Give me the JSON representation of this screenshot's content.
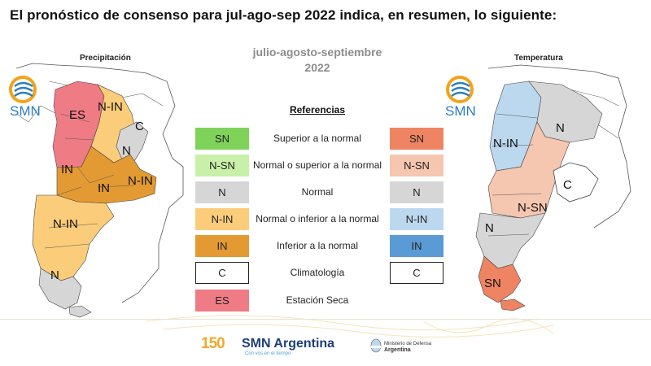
{
  "title": "El pronóstico de consenso para  jul-ago-sep 2022 indica, en resumen, lo siguiente:",
  "period": {
    "line1": "julio-agosto-septiembre",
    "line2": "2022"
  },
  "left_map": {
    "title": "Precipitación",
    "logo_text": "SMN",
    "labels": [
      "ES",
      "N-IN",
      "C",
      "N",
      "IN",
      "IN",
      "N-IN",
      "N-IN",
      "N"
    ]
  },
  "right_map": {
    "title": "Temperatura",
    "logo_text": "SMN",
    "labels": [
      "N",
      "N-IN",
      "C",
      "N-SN",
      "N",
      "SN"
    ]
  },
  "references": {
    "title": "Referencias",
    "items": [
      {
        "label": "Superior a la normal",
        "left_code": "SN",
        "left_color": "#7fd35a",
        "right_code": "SN",
        "right_color": "#ef8462"
      },
      {
        "label": "Normal o superior a la normal",
        "left_code": "N-SN",
        "left_color": "#c9f0a9",
        "right_code": "N-SN",
        "right_color": "#f5c6b0"
      },
      {
        "label": "Normal",
        "left_code": "N",
        "left_color": "#d6d6d6",
        "right_code": "N",
        "right_color": "#d6d6d6"
      },
      {
        "label": "Normal o inferior a la normal",
        "left_code": "N-IN",
        "left_color": "#fbcd7a",
        "right_code": "N-IN",
        "right_color": "#bcd8ef"
      },
      {
        "label": "Inferior a la normal",
        "left_code": "IN",
        "left_color": "#e39a33",
        "right_code": "IN",
        "right_color": "#5b9bd5"
      },
      {
        "label": "Climatología",
        "left_code": "C",
        "left_color": "#ffffff",
        "right_code": "C",
        "right_color": "#ffffff"
      },
      {
        "label": "Estación Seca",
        "left_code": "ES",
        "left_color": "#ef7b85"
      }
    ]
  },
  "footer": {
    "number": "150",
    "brand": "SMN Argentina",
    "tagline": "Con vos en el tiempo",
    "ministry_line1": "Ministerio de Defensa",
    "ministry_line2": "Argentina"
  },
  "colors": {
    "es": "#ef7b85",
    "n_in_prec": "#fbcd7a",
    "in_prec": "#e39a33",
    "normal": "#d6d6d6",
    "n_in_temp": "#bcd8ef",
    "n_sn_temp": "#f5c6b0",
    "sn_temp": "#ef8462",
    "logo_blue": "#2a7fc1",
    "logo_orange": "#f2a31b"
  }
}
